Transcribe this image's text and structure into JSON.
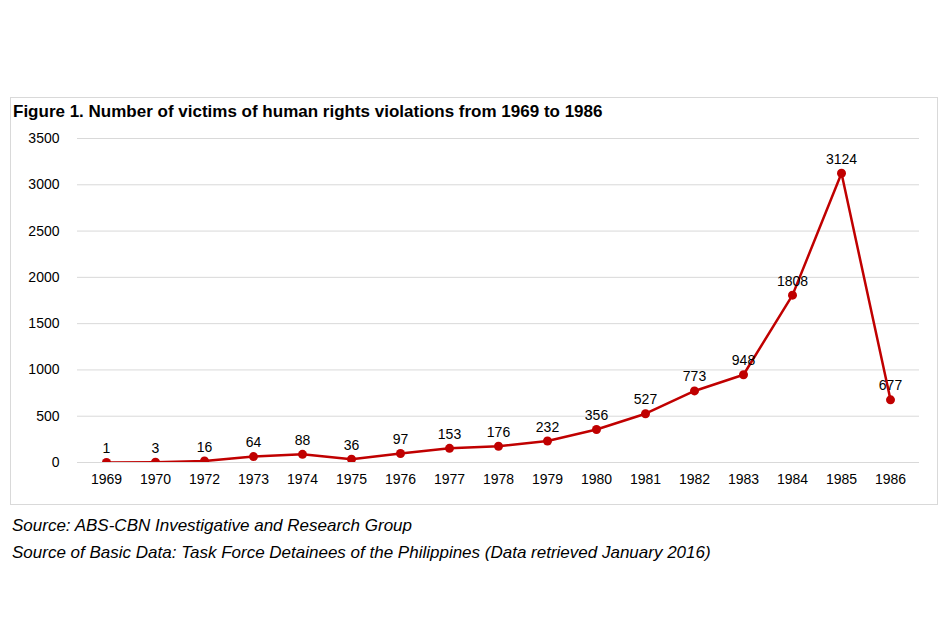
{
  "chart_data": {
    "type": "line",
    "title": "Figure 1. Number of victims of human rights violations from 1969 to 1986",
    "annotations": [
      "Source: ABS-CBN Investigative and Research Group",
      "Source of Basic Data: Task Force Detainees of the Philippines (Data retrieved January 2016)"
    ],
    "categories": [
      "1969",
      "1970",
      "1972",
      "1973",
      "1974",
      "1975",
      "1976",
      "1977",
      "1978",
      "1979",
      "1980",
      "1981",
      "1982",
      "1983",
      "1984",
      "1985",
      "1986"
    ],
    "values": [
      1,
      3,
      16,
      64,
      88,
      36,
      97,
      153,
      176,
      232,
      356,
      527,
      773,
      948,
      1808,
      3124,
      677
    ],
    "color": "#c00000",
    "ylim": [
      0,
      3500
    ],
    "yticks": [
      0,
      500,
      1000,
      1500,
      2000,
      2500,
      3000,
      3500
    ],
    "grid": true,
    "data_labels": true,
    "marker": "circle"
  }
}
